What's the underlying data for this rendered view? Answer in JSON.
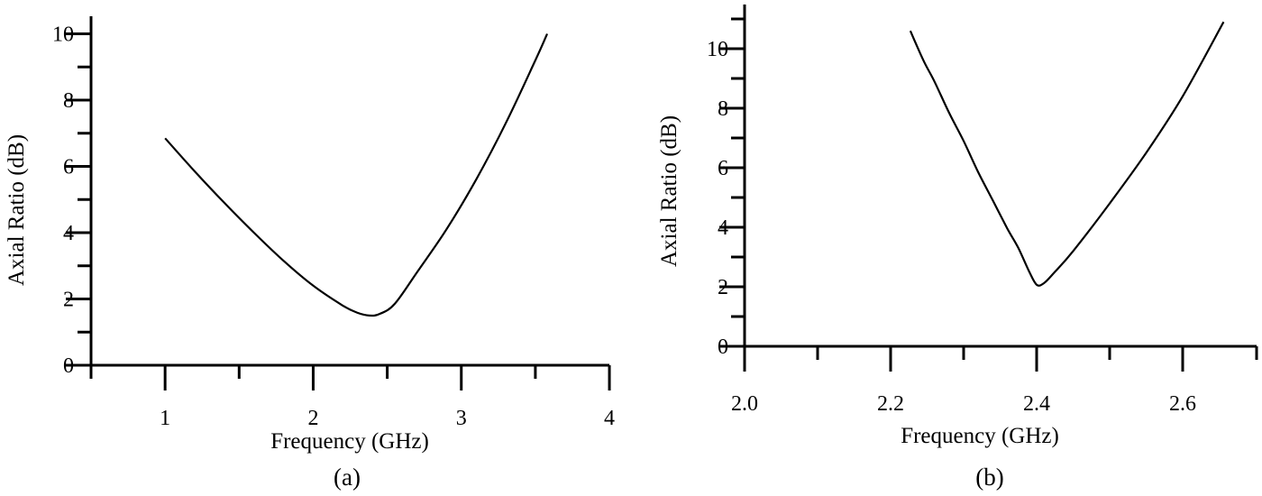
{
  "chart_data": [
    {
      "type": "line",
      "panel_label": "(a)",
      "title": "",
      "xlabel": "Frequency (GHz)",
      "ylabel": "Axial Ratio (dB)",
      "xlim": [
        0.5,
        4
      ],
      "ylim": [
        0,
        10
      ],
      "xticks": [
        "1",
        "2",
        "3",
        "4"
      ],
      "xtick_values": [
        1,
        2,
        3,
        4
      ],
      "yticks": [
        "0",
        "2",
        "4",
        "6",
        "8",
        "10"
      ],
      "ytick_values": [
        0,
        2,
        4,
        6,
        8,
        10
      ],
      "grid": false,
      "legend": null,
      "series": [
        {
          "name": "Axial Ratio",
          "color": "#000000",
          "x": [
            1.0,
            1.2,
            1.4,
            1.6,
            1.8,
            2.0,
            2.2,
            2.3,
            2.38,
            2.45,
            2.55,
            2.7,
            2.9,
            3.1,
            3.3,
            3.5,
            3.58
          ],
          "y": [
            6.85,
            5.85,
            4.9,
            4.0,
            3.15,
            2.4,
            1.8,
            1.58,
            1.5,
            1.55,
            1.85,
            2.8,
            4.1,
            5.6,
            7.3,
            9.2,
            10.0
          ]
        }
      ]
    },
    {
      "type": "line",
      "panel_label": "(b)",
      "title": "",
      "xlabel": "Frequency (GHz)",
      "ylabel": "Axial Ratio (dB)",
      "xlim": [
        2.0,
        2.7
      ],
      "ylim": [
        0,
        11.5
      ],
      "xticks": [
        "2.0",
        "2.2",
        "2.4",
        "2.6"
      ],
      "xtick_values": [
        2.0,
        2.2,
        2.4,
        2.6
      ],
      "yticks": [
        "0",
        "2",
        "4",
        "6",
        "8",
        "10"
      ],
      "ytick_values": [
        0,
        2,
        4,
        6,
        8,
        10
      ],
      "grid": false,
      "legend": null,
      "series": [
        {
          "name": "Axial Ratio",
          "color": "#000000",
          "x": [
            2.227,
            2.245,
            2.26,
            2.28,
            2.3,
            2.32,
            2.34,
            2.36,
            2.375,
            2.39,
            2.4,
            2.41,
            2.425,
            2.45,
            2.5,
            2.55,
            2.6,
            2.656
          ],
          "y": [
            10.6,
            9.6,
            8.9,
            7.85,
            6.9,
            5.85,
            4.9,
            3.95,
            3.3,
            2.5,
            2.07,
            2.12,
            2.5,
            3.2,
            4.8,
            6.5,
            8.4,
            10.9
          ]
        }
      ]
    }
  ]
}
